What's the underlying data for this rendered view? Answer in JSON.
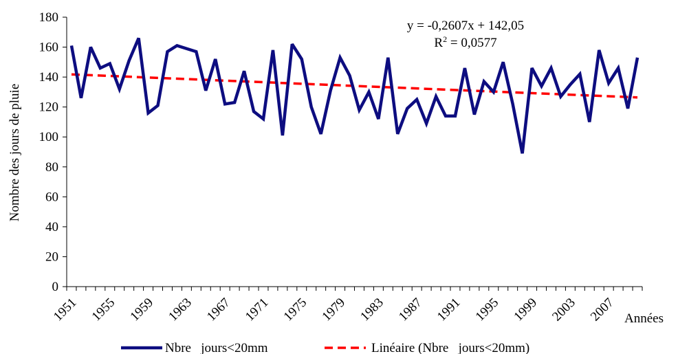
{
  "chart_data": {
    "type": "line",
    "title": "",
    "xlabel": "Années",
    "ylabel": "Nombre des jours de pluie",
    "ylim": [
      0,
      180
    ],
    "yticks": [
      "0",
      "20",
      "40",
      "60",
      "80",
      "100",
      "120",
      "140",
      "160",
      "180"
    ],
    "xticks": [
      "1951",
      "1955",
      "1959",
      "1963",
      "1967",
      "1971",
      "1975",
      "1979",
      "1983",
      "1987",
      "1991",
      "1995",
      "1999",
      "2003",
      "2007"
    ],
    "grid": false,
    "legend_position": "bottom",
    "x": [
      1951,
      1952,
      1953,
      1954,
      1955,
      1956,
      1957,
      1958,
      1959,
      1960,
      1961,
      1962,
      1963,
      1964,
      1965,
      1966,
      1967,
      1968,
      1969,
      1970,
      1971,
      1972,
      1973,
      1974,
      1975,
      1976,
      1977,
      1978,
      1979,
      1980,
      1981,
      1982,
      1983,
      1984,
      1985,
      1986,
      1987,
      1988,
      1989,
      1990,
      1991,
      1992,
      1993,
      1994,
      1995,
      1996,
      1997,
      1998,
      1999,
      2000,
      2001,
      2002,
      2003,
      2004,
      2005,
      2006,
      2007,
      2008,
      2009,
      2010
    ],
    "series": [
      {
        "name": "Nbre   jours<20mm",
        "color": "#0d0d80",
        "style": "solid",
        "values": [
          161,
          126,
          160,
          146,
          149,
          132,
          151,
          166,
          116,
          121,
          157,
          161,
          159,
          157,
          131,
          152,
          122,
          123,
          144,
          117,
          112,
          158,
          101,
          162,
          152,
          120,
          102,
          131,
          153,
          141,
          118,
          130,
          112,
          153,
          102,
          119,
          125,
          109,
          127,
          114,
          114,
          146,
          115,
          137,
          130,
          150,
          122,
          89,
          146,
          134,
          146,
          127,
          135,
          142,
          110,
          158,
          136,
          146,
          119,
          153
        ]
      },
      {
        "name": "Linéaire (Nbre   jours<20mm)",
        "color": "#ff0000",
        "style": "dashed",
        "trend": {
          "slope": -0.2607,
          "intercept": 142.05
        }
      }
    ],
    "annotations": {
      "equation": "y = -0,2607x + 142,05",
      "r2_prefix": "R",
      "r2_sup": "2",
      "r2_rest": " = 0,0577"
    }
  }
}
